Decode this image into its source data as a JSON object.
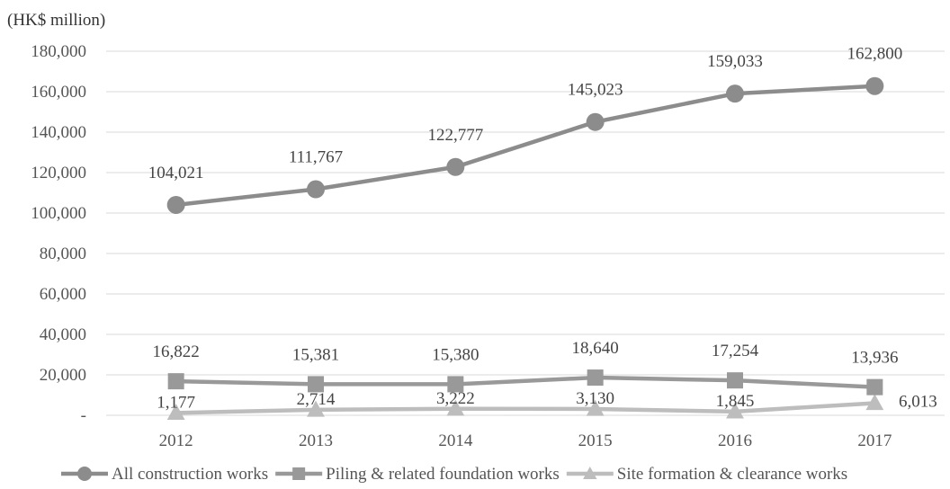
{
  "chart_data": {
    "type": "line",
    "title": "",
    "unit_label": "(HK$ million)",
    "xlabel": "",
    "ylabel": "",
    "categories": [
      "2012",
      "2013",
      "2014",
      "2015",
      "2016",
      "2017"
    ],
    "ylim": [
      0,
      180000
    ],
    "yticks": [
      {
        "value": 0,
        "label": "-"
      },
      {
        "value": 20000,
        "label": "20,000"
      },
      {
        "value": 40000,
        "label": "40,000"
      },
      {
        "value": 60000,
        "label": "60,000"
      },
      {
        "value": 80000,
        "label": "80,000"
      },
      {
        "value": 100000,
        "label": "100,000"
      },
      {
        "value": 120000,
        "label": "120,000"
      },
      {
        "value": 140000,
        "label": "140,000"
      },
      {
        "value": 160000,
        "label": "160,000"
      },
      {
        "value": 180000,
        "label": "180,000"
      }
    ],
    "grid": true,
    "legend_position": "bottom",
    "series": [
      {
        "name": "All construction works",
        "marker": "circle",
        "color": "#8c8c8c",
        "values": [
          104021,
          111767,
          122777,
          145023,
          159033,
          162800
        ],
        "labels": [
          "104,021",
          "111,767",
          "122,777",
          "145,023",
          "159,033",
          "162,800"
        ]
      },
      {
        "name": "Piling & related foundation works",
        "marker": "square",
        "color": "#999999",
        "values": [
          16822,
          15381,
          15380,
          18640,
          17254,
          13936
        ],
        "labels": [
          "16,822",
          "15,381",
          "15,380",
          "18,640",
          "17,254",
          "13,936"
        ]
      },
      {
        "name": "Site formation & clearance works",
        "marker": "triangle",
        "color": "#bdbdbd",
        "values": [
          1177,
          2714,
          3222,
          3130,
          1845,
          6013
        ],
        "labels": [
          "1,177",
          "2,714",
          "3,222",
          "3,130",
          "1,845",
          "6,013"
        ]
      }
    ]
  }
}
